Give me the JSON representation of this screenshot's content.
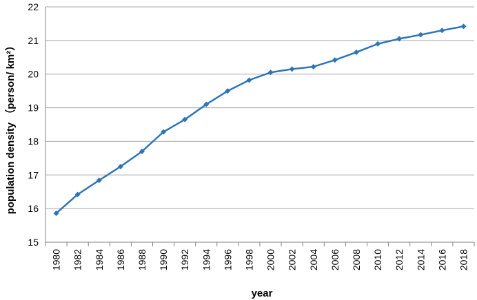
{
  "chart_data": {
    "type": "line",
    "title": "",
    "xlabel": "year",
    "ylabel": "population density （person/ km²）",
    "ylim": [
      15,
      22
    ],
    "yticks": [
      "15",
      "16",
      "17",
      "18",
      "19",
      "20",
      "21",
      "22"
    ],
    "grid": "horizontal",
    "legend": "none",
    "colors": {
      "line": "#2e75b6",
      "grid": "#a6a6a6",
      "axis": "#808080"
    },
    "x_tick_labels": [
      "1980",
      "1982",
      "1984",
      "1986",
      "1988",
      "1990",
      "1992",
      "1994",
      "1996",
      "1998",
      "2000",
      "2002",
      "2004",
      "2006",
      "2008",
      "2010",
      "2012",
      "2014",
      "2016",
      "2018"
    ],
    "series": [
      {
        "x": [
          1980,
          1982,
          1984,
          1986,
          1988,
          1990,
          1992,
          1994,
          1996,
          1998,
          2000,
          2002,
          2004,
          2006,
          2008,
          2010,
          2012,
          2014,
          2016,
          2018
        ],
        "values": [
          15.86,
          16.42,
          16.84,
          17.25,
          17.7,
          18.28,
          18.65,
          19.1,
          19.5,
          19.82,
          20.05,
          20.15,
          20.22,
          20.42,
          20.65,
          20.9,
          21.05,
          21.17,
          21.3,
          21.42
        ]
      }
    ]
  }
}
